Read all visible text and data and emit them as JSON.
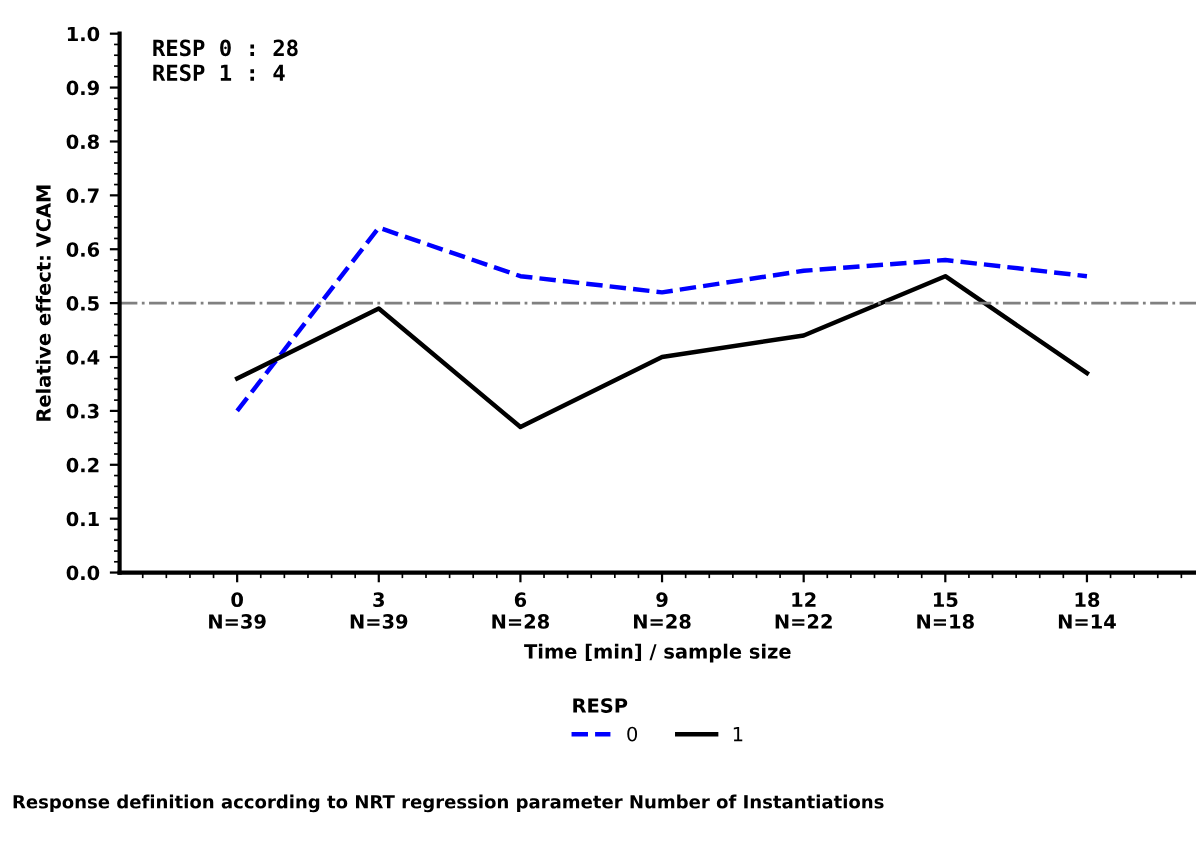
{
  "chart_data": {
    "type": "line",
    "xlabel": "Time [min] / sample size",
    "ylabel": "Relative effect: VCAM",
    "legend_title": "RESP",
    "categories": [
      "0\nN=39",
      "3\nN=39",
      "6\nN=28",
      "9\nN=28",
      "12\nN=22",
      "15\nN=18",
      "18\nN=14"
    ],
    "series": [
      {
        "name": "0",
        "color": "#0000ff",
        "line_style": "dashed",
        "values": [
          0.3,
          0.64,
          0.55,
          0.52,
          0.56,
          0.58,
          0.55
        ]
      },
      {
        "name": "1",
        "color": "#000000",
        "line_style": "solid",
        "values": [
          0.36,
          0.49,
          0.27,
          0.4,
          0.44,
          0.55,
          0.37
        ]
      }
    ],
    "ylim": [
      0,
      1
    ],
    "yticks": [
      {
        "value": 0,
        "label": "0.0"
      },
      {
        "value": 0.1,
        "label": "0.1"
      },
      {
        "value": 0.2,
        "label": "0.2"
      },
      {
        "value": 0.3,
        "label": "0.3"
      },
      {
        "value": 0.4,
        "label": "0.4"
      },
      {
        "value": 0.5,
        "label": "0.5"
      },
      {
        "value": 0.6,
        "label": "0.6"
      },
      {
        "value": 0.7,
        "label": "0.7"
      },
      {
        "value": 0.8,
        "label": "0.8"
      },
      {
        "value": 0.9,
        "label": "0.9"
      },
      {
        "value": 1.0,
        "label": "1.0"
      }
    ],
    "ref_lines": [
      {
        "axis": "y",
        "value": 0.5,
        "color": "#808080",
        "line_style": "dashdot"
      }
    ],
    "grid": false,
    "legend": "bottom",
    "marker": "none",
    "annotations": [
      "RESP 0 : 28\nRESP 1 : 4",
      "Response definition according to NRT regression parameter Number of Instantiations"
    ]
  }
}
